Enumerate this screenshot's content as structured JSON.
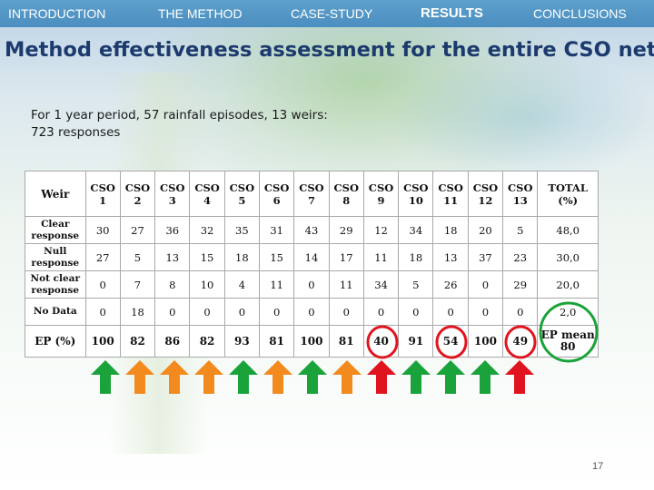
{
  "nav": {
    "items": [
      {
        "label": "INTRODUCTION",
        "active": false
      },
      {
        "label": "THE METHOD",
        "active": false
      },
      {
        "label": "CASE-STUDY",
        "active": false
      },
      {
        "label": "RESULTS",
        "active": true
      },
      {
        "label": "CONCLUSIONS",
        "active": false
      }
    ]
  },
  "slide": {
    "title": "Method effectiveness assessment for the entire CSO network",
    "subtitle_line1": "For 1 year period, 57 rainfall episodes, 13 weirs:",
    "subtitle_line2": "723 responses",
    "page_number": "17"
  },
  "table": {
    "corner_header": "Weir",
    "columns": [
      {
        "line1": "CSO",
        "line2": "1"
      },
      {
        "line1": "CSO",
        "line2": "2"
      },
      {
        "line1": "CSO",
        "line2": "3"
      },
      {
        "line1": "CSO",
        "line2": "4"
      },
      {
        "line1": "CSO",
        "line2": "5"
      },
      {
        "line1": "CSO",
        "line2": "6"
      },
      {
        "line1": "CSO",
        "line2": "7"
      },
      {
        "line1": "CSO",
        "line2": "8"
      },
      {
        "line1": "CSO",
        "line2": "9"
      },
      {
        "line1": "CSO",
        "line2": "10"
      },
      {
        "line1": "CSO",
        "line2": "11"
      },
      {
        "line1": "CSO",
        "line2": "12"
      },
      {
        "line1": "CSO",
        "line2": "13"
      }
    ],
    "total_header": {
      "line1": "TOTAL",
      "line2": "(%)"
    },
    "rows": [
      {
        "label_line1": "Clear",
        "label_line2": "response",
        "values": [
          "30",
          "27",
          "36",
          "32",
          "35",
          "31",
          "43",
          "29",
          "12",
          "34",
          "18",
          "20",
          "5"
        ],
        "total": "48,0"
      },
      {
        "label_line1": "Null",
        "label_line2": "response",
        "values": [
          "27",
          "5",
          "13",
          "15",
          "18",
          "15",
          "14",
          "17",
          "11",
          "18",
          "13",
          "37",
          "23"
        ],
        "total": "30,0"
      },
      {
        "label_line1": "Not clear",
        "label_line2": "response",
        "values": [
          "0",
          "7",
          "8",
          "10",
          "4",
          "11",
          "0",
          "11",
          "34",
          "5",
          "26",
          "0",
          "29"
        ],
        "total": "20,0"
      },
      {
        "label_line1": "No Data",
        "label_line2": "",
        "values": [
          "0",
          "18",
          "0",
          "0",
          "0",
          "0",
          "0",
          "0",
          "0",
          "0",
          "0",
          "0",
          "0"
        ],
        "total": "2,0"
      }
    ],
    "ep_row": {
      "label": "EP (%)",
      "values": [
        "100",
        "82",
        "86",
        "82",
        "93",
        "81",
        "100",
        "81",
        "40",
        "91",
        "54",
        "100",
        "49"
      ],
      "mean_label": "EP mean",
      "mean_value": "80"
    },
    "highlights": {
      "red_circles_columns": [
        "CSO 9",
        "CSO 11",
        "CSO 13"
      ],
      "green_circle": "TOTAL No Data / EP mean",
      "circle_red_color": "#e0141e",
      "circle_green_color": "#1aa33a"
    }
  },
  "arrows": {
    "colors": [
      "green",
      "orange",
      "orange",
      "orange",
      "green",
      "orange",
      "green",
      "orange",
      "red",
      "green",
      "green",
      "green",
      "red"
    ],
    "palette": {
      "green": "#1aa33a",
      "orange": "#f28a1e",
      "red": "#e0141e"
    }
  }
}
